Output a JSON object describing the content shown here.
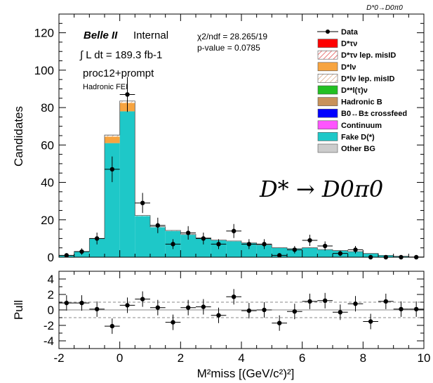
{
  "chart_data": [
    {
      "type": "bar",
      "stacked": true,
      "title": "D*0→D0π0",
      "xlabel": "M²miss [(GeV/c²)²]",
      "ylabel": "Candidates",
      "xlim": [
        -2,
        10
      ],
      "ylim": [
        0,
        130
      ],
      "x_ticks": [
        -2,
        0,
        2,
        4,
        6,
        8,
        10
      ],
      "y_ticks": [
        0,
        20,
        40,
        60,
        80,
        100,
        120
      ],
      "bin_edges": [
        -2.0,
        -1.5,
        -1.0,
        -0.5,
        0.0,
        0.5,
        1.0,
        1.5,
        2.0,
        2.5,
        3.0,
        3.5,
        4.0,
        4.5,
        5.0,
        5.5,
        6.0,
        6.5,
        7.0,
        7.5,
        8.0,
        8.5,
        9.0,
        9.5,
        10.0
      ],
      "series": [
        {
          "name": "Fake D(*)",
          "color": "#1ec8c8",
          "values": [
            1.0,
            3.0,
            10.0,
            61.0,
            78.0,
            22.0,
            16.0,
            14.0,
            12.0,
            10.0,
            9.0,
            8.5,
            7.5,
            6.5,
            5.0,
            4.5,
            5.0,
            4.0,
            3.5,
            3.0,
            2.0,
            1.0,
            0.5,
            0.2
          ]
        },
        {
          "name": "D*lν",
          "color": "#f7a440",
          "values": [
            0.0,
            0.0,
            0.0,
            3.5,
            4.5,
            0.0,
            0.0,
            0.0,
            0.0,
            0.0,
            0.0,
            0.0,
            0.0,
            0.0,
            0.0,
            0.0,
            0.0,
            0.0,
            0.0,
            0.0,
            0.0,
            0.0,
            0.0,
            0.0
          ]
        },
        {
          "name": "D*lν lep. misID",
          "color": "#dcc2a8",
          "values": [
            0.0,
            0.0,
            0.0,
            0.8,
            1.0,
            0.3,
            0.3,
            0.3,
            0.3,
            0.3,
            0.2,
            0.2,
            0.2,
            0.2,
            0.1,
            0.1,
            0.1,
            0.1,
            0.1,
            0.0,
            0.0,
            0.0,
            0.0,
            0.0
          ]
        }
      ],
      "data": {
        "name": "Data",
        "x": [
          -1.75,
          -1.25,
          -0.75,
          -0.25,
          0.25,
          0.75,
          1.25,
          1.75,
          2.25,
          2.75,
          3.25,
          3.75,
          4.25,
          4.75,
          5.25,
          5.75,
          6.25,
          6.75,
          7.25,
          7.75,
          8.25,
          8.75,
          9.25,
          9.75
        ],
        "y": [
          1,
          3,
          10,
          47,
          87,
          29,
          17,
          7,
          13,
          10,
          7,
          14,
          7,
          7,
          1,
          4,
          9,
          6,
          2,
          4,
          0,
          0,
          0,
          0
        ]
      },
      "legend": {
        "placement": "top-right",
        "entries": [
          {
            "label": "Data",
            "style": "marker",
            "color": "#000000"
          },
          {
            "label": "D*τν",
            "style": "fill",
            "color": "#ff0000"
          },
          {
            "label": "D*τν lep. misID",
            "style": "hatch",
            "color": "#e04040"
          },
          {
            "label": "D*lν",
            "style": "fill",
            "color": "#f7a440"
          },
          {
            "label": "D*lν lep. misID",
            "style": "hatch",
            "color": "#e8b080"
          },
          {
            "label": "D**l(τ)ν",
            "style": "fill",
            "color": "#22c022"
          },
          {
            "label": "Hadronic B",
            "style": "fill",
            "color": "#c8925a"
          },
          {
            "label": "B0↔B± crossfeed",
            "style": "fill",
            "color": "#0000ff"
          },
          {
            "label": "Continuum",
            "style": "fill",
            "color": "#ff55ff"
          },
          {
            "label": "Fake D(*)",
            "style": "fill",
            "color": "#1ec8c8"
          },
          {
            "label": "Other BG",
            "style": "fill",
            "color": "#cccccc"
          }
        ]
      },
      "annotations": {
        "experiment": "Belle II",
        "status": "Internal",
        "lumi": "∫ L dt = 189.3 fb-1",
        "sample": "proc12+prompt",
        "tag": "Hadronic FEI",
        "chi2": "χ2/ndf = 28.265/19",
        "pvalue": "p-value = 0.0785",
        "decay": "D* → D0π0"
      }
    },
    {
      "type": "scatter",
      "ylabel": "Pull",
      "xlabel": "M²miss [(GeV/c²)²]",
      "xlim": [
        -2,
        10
      ],
      "ylim": [
        -5,
        5
      ],
      "y_ticks": [
        -4,
        -2,
        0,
        2,
        4
      ],
      "reference_lines": [
        0,
        1,
        -1
      ],
      "x": [
        -1.75,
        -1.25,
        -0.75,
        -0.25,
        0.25,
        0.75,
        1.25,
        1.75,
        2.25,
        2.75,
        3.25,
        3.75,
        4.25,
        4.75,
        5.25,
        5.75,
        6.25,
        6.75,
        7.25,
        7.75,
        8.25,
        8.75,
        9.25,
        9.75
      ],
      "y": [
        0.9,
        0.9,
        0.1,
        -2.1,
        0.6,
        1.4,
        0.3,
        -1.6,
        0.3,
        0.4,
        -0.7,
        1.7,
        -0.1,
        0.0,
        -1.7,
        -0.2,
        1.1,
        1.2,
        -0.3,
        0.8,
        -1.5,
        1.1,
        0.1,
        0.1
      ]
    }
  ]
}
